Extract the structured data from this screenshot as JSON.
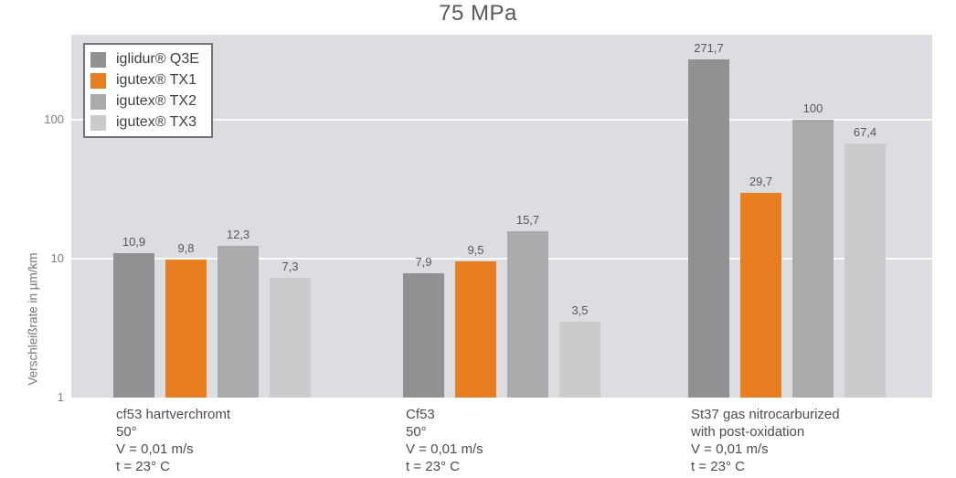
{
  "title": "75 MPa",
  "y_axis": {
    "label": "Verschleißrate in µm/km",
    "ticks": [
      "100",
      "10",
      "1"
    ]
  },
  "legend": {
    "items": [
      {
        "label": "iglidur® Q3E",
        "color": "#8f9193"
      },
      {
        "label": "igutex® TX1",
        "color": "#e87e22"
      },
      {
        "label": "igutex® TX2",
        "color": "#a8aaac"
      },
      {
        "label": "igutex® TX3",
        "color": "#cacbcd"
      }
    ]
  },
  "chart_data": {
    "type": "bar",
    "title": "75 MPa",
    "ylabel": "Verschleißrate in µm/km",
    "xlabel": "",
    "y_scale": "log",
    "ylim": [
      1,
      410
    ],
    "yticks": [
      1,
      10,
      100
    ],
    "grid": true,
    "legend_position": "top-left",
    "plot_background": "#dcdde0",
    "categories": [
      [
        "cf53 hartverchromt",
        "50°",
        "V = 0,01 m/s",
        "t = 23° C"
      ],
      [
        "Cf53",
        "50°",
        "V = 0,01 m/s",
        "t = 23° C"
      ],
      [
        "St37 gas nitrocarburized",
        "with post-oxidation",
        "V = 0,01 m/s",
        "t = 23° C"
      ]
    ],
    "series": [
      {
        "name": "iglidur® Q3E",
        "color": "#8f9193",
        "values": [
          10.9,
          7.9,
          271.7
        ],
        "value_labels": [
          "10,9",
          "7,9",
          "271,7"
        ]
      },
      {
        "name": "igutex® TX1",
        "color": "#e87e22",
        "values": [
          9.8,
          9.5,
          29.7
        ],
        "value_labels": [
          "9,8",
          "9,5",
          "29,7"
        ]
      },
      {
        "name": "igutex® TX2",
        "color": "#a8aaac",
        "values": [
          12.3,
          15.7,
          100
        ],
        "value_labels": [
          "12,3",
          "15,7",
          "100"
        ]
      },
      {
        "name": "igutex® TX3",
        "color": "#cacbcd",
        "values": [
          7.3,
          3.5,
          67.4
        ],
        "value_labels": [
          "7,3",
          "3,5",
          "67,4"
        ]
      }
    ]
  }
}
